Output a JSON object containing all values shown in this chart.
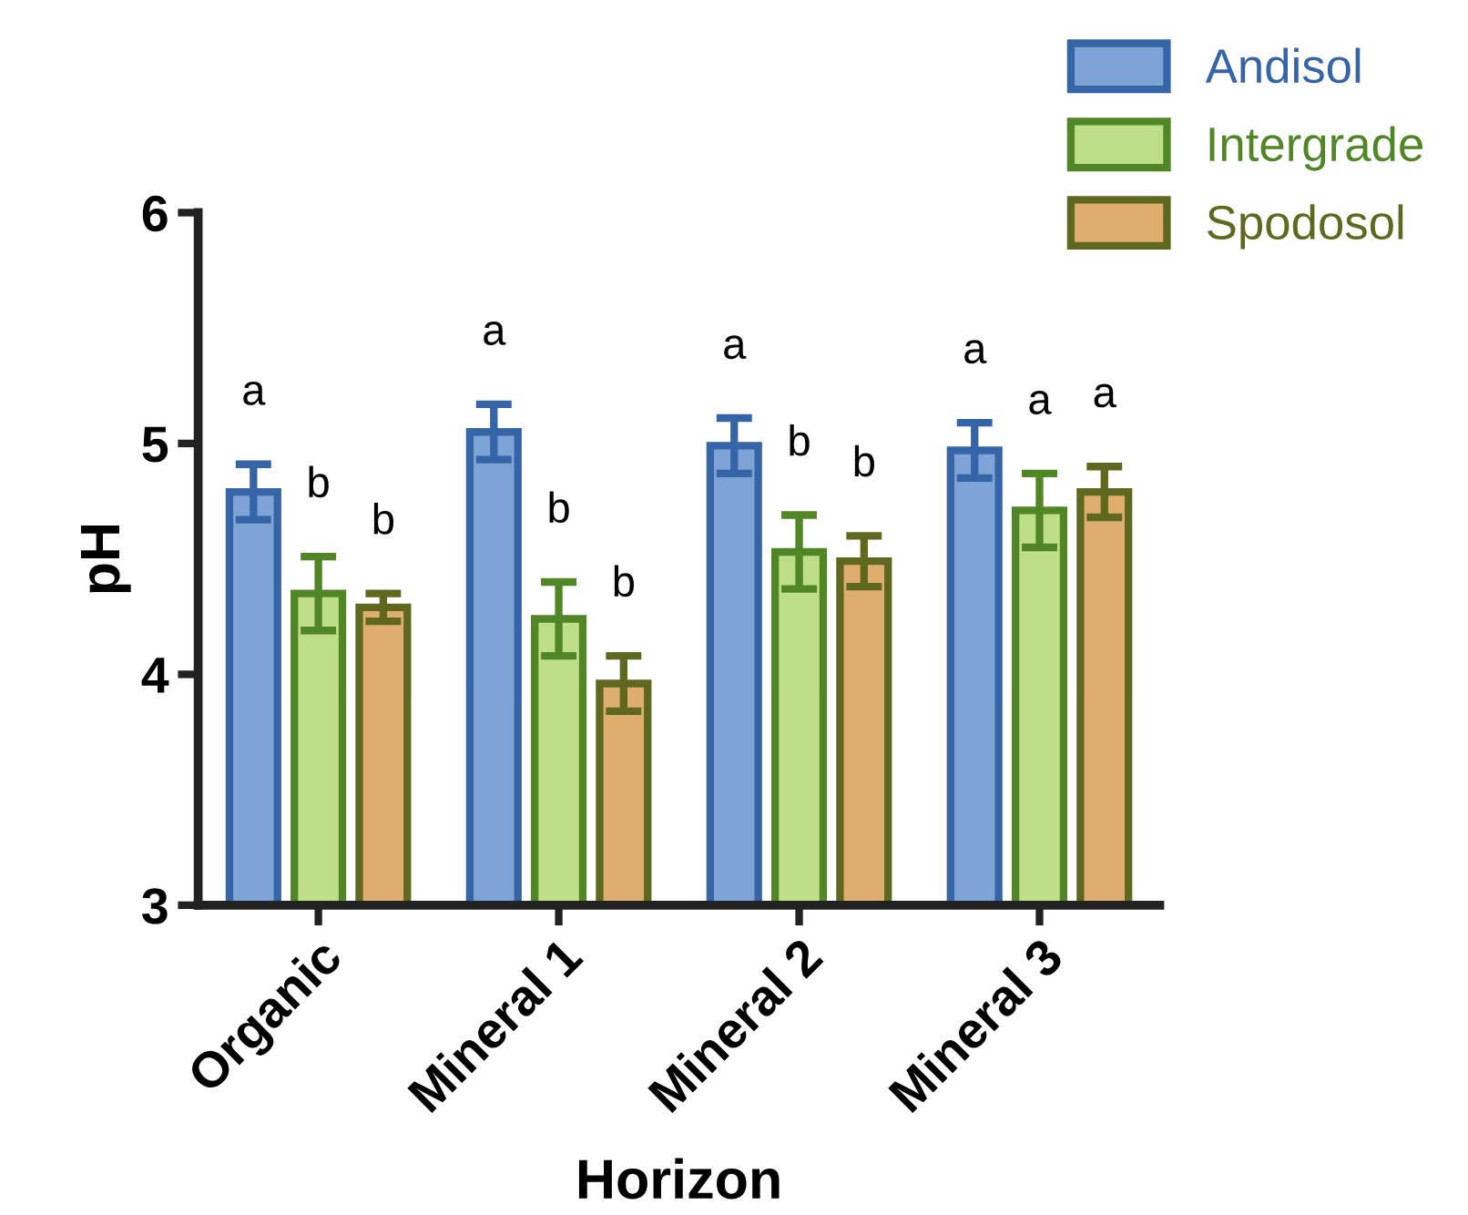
{
  "chart_data": {
    "type": "bar",
    "xlabel": "Horizon",
    "ylabel": "pH",
    "categories": [
      "Organic",
      "Mineral 1",
      "Mineral 2",
      "Mineral 3"
    ],
    "series": [
      {
        "name": "Andisol",
        "color": "#7ea3d6",
        "values": [
          4.79,
          5.05,
          4.99,
          4.97
        ],
        "errors": [
          0.12,
          0.12,
          0.12,
          0.12
        ],
        "value_labels": [
          "a",
          "a",
          "a",
          "a"
        ]
      },
      {
        "name": "Intergrade",
        "color": "#bedf88",
        "values": [
          4.35,
          4.24,
          4.53,
          4.71
        ],
        "errors": [
          0.16,
          0.16,
          0.16,
          0.16
        ],
        "value_labels": [
          "b",
          "b",
          "b",
          "a"
        ]
      },
      {
        "name": "Spodosol",
        "color": "#dfae6f",
        "values": [
          4.29,
          3.96,
          4.49,
          4.79
        ],
        "errors": [
          0.06,
          0.12,
          0.11,
          0.11
        ],
        "value_labels": [
          "b",
          "b",
          "b",
          "a"
        ]
      }
    ],
    "ylim": [
      3,
      6
    ],
    "yticks": [
      3,
      4,
      5,
      6
    ],
    "grid": false,
    "legend": "top right"
  }
}
